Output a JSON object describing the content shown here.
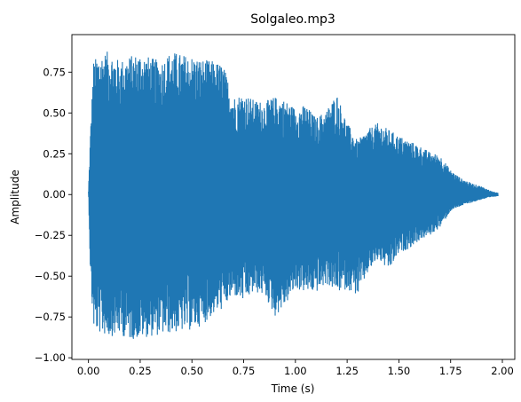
{
  "chart_data": {
    "type": "line",
    "title": "Solgaleo.mp3",
    "xlabel": "Time (s)",
    "ylabel": "Amplitude",
    "xlim": [
      -0.08,
      2.06
    ],
    "ylim": [
      -1.01,
      0.98
    ],
    "xticks": [
      0.0,
      0.25,
      0.5,
      0.75,
      1.0,
      1.25,
      1.5,
      1.75,
      2.0
    ],
    "xtick_labels": [
      "0.00",
      "0.25",
      "0.50",
      "0.75",
      "1.00",
      "1.25",
      "1.50",
      "1.75",
      "2.00"
    ],
    "yticks": [
      -1.0,
      -0.75,
      -0.5,
      -0.25,
      0.0,
      0.25,
      0.5,
      0.75
    ],
    "ytick_labels": [
      "−1.00",
      "−0.75",
      "−0.50",
      "−0.25",
      "0.00",
      "0.25",
      "0.50",
      "0.75"
    ],
    "grid": false,
    "legend": "none",
    "series_color": "#1f77b4",
    "x_range": [
      0.0,
      1.98
    ],
    "envelope": {
      "t": [
        0.0,
        0.01,
        0.025,
        0.05,
        0.1,
        0.15,
        0.2,
        0.25,
        0.3,
        0.35,
        0.4,
        0.45,
        0.5,
        0.55,
        0.6,
        0.65,
        0.7,
        0.75,
        0.8,
        0.85,
        0.9,
        0.95,
        1.0,
        1.05,
        1.1,
        1.15,
        1.2,
        1.25,
        1.3,
        1.35,
        1.4,
        1.45,
        1.5,
        1.55,
        1.6,
        1.65,
        1.7,
        1.75,
        1.8,
        1.85,
        1.9,
        1.95,
        1.98
      ],
      "upper": [
        0.02,
        0.4,
        0.82,
        0.86,
        0.88,
        0.82,
        0.85,
        0.87,
        0.84,
        0.82,
        0.88,
        0.86,
        0.85,
        0.83,
        0.82,
        0.8,
        0.6,
        0.62,
        0.58,
        0.57,
        0.6,
        0.58,
        0.53,
        0.55,
        0.47,
        0.52,
        0.62,
        0.44,
        0.33,
        0.4,
        0.44,
        0.4,
        0.36,
        0.33,
        0.3,
        0.26,
        0.24,
        0.15,
        0.1,
        0.07,
        0.05,
        0.02,
        0.01
      ],
      "lower": [
        -0.02,
        -0.58,
        -0.82,
        -0.85,
        -0.87,
        -0.86,
        -0.89,
        -0.88,
        -0.87,
        -0.86,
        -0.85,
        -0.84,
        -0.83,
        -0.8,
        -0.74,
        -0.7,
        -0.62,
        -0.66,
        -0.6,
        -0.62,
        -0.75,
        -0.68,
        -0.58,
        -0.6,
        -0.6,
        -0.55,
        -0.6,
        -0.58,
        -0.62,
        -0.48,
        -0.4,
        -0.47,
        -0.36,
        -0.33,
        -0.28,
        -0.25,
        -0.2,
        -0.1,
        -0.07,
        -0.05,
        -0.03,
        -0.015,
        -0.01
      ]
    }
  }
}
